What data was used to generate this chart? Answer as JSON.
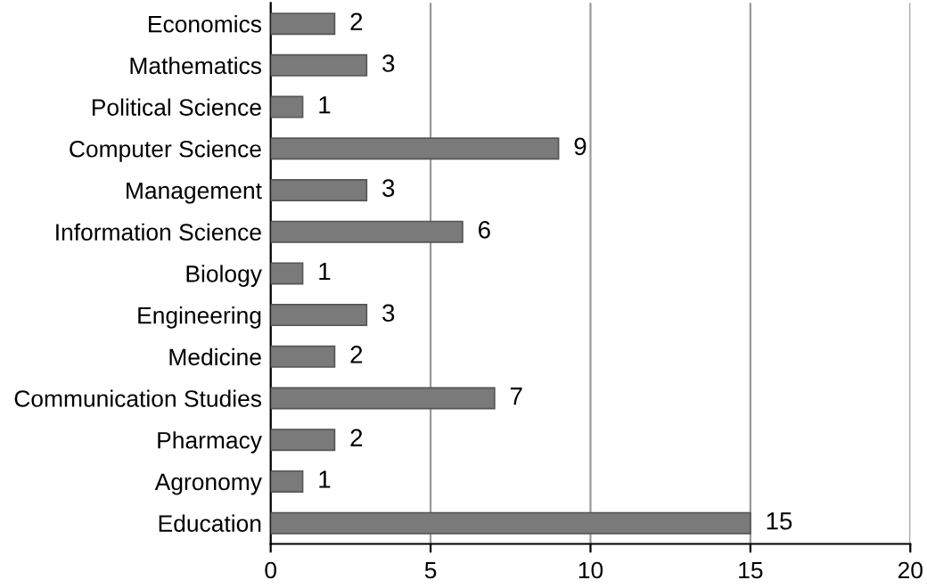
{
  "chart_data": {
    "type": "bar",
    "orientation": "horizontal",
    "categories": [
      "Economics",
      "Mathematics",
      "Political Science",
      "Computer Science",
      "Management",
      "Information Science",
      "Biology",
      "Engineering",
      "Medicine",
      "Communication Studies",
      "Pharmacy",
      "Agronomy",
      "Education"
    ],
    "values": [
      2,
      3,
      1,
      9,
      3,
      6,
      1,
      3,
      2,
      7,
      2,
      1,
      15
    ],
    "color": "#7a7a7a",
    "xlim": [
      0,
      20
    ],
    "xticks": [
      0,
      5,
      10,
      15,
      20
    ],
    "grid": "x",
    "data_labels": true
  }
}
